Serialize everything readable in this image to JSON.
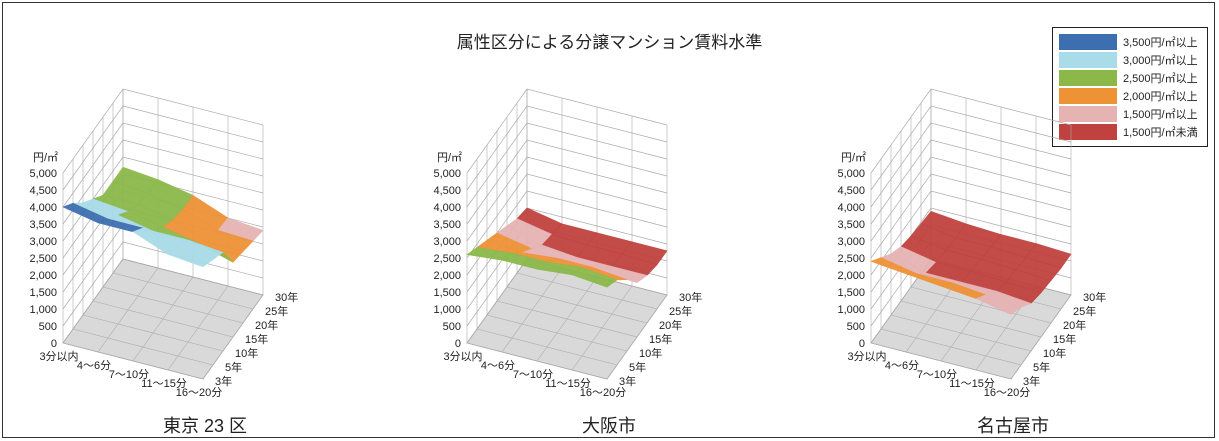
{
  "title": "属性区分による分譲マンション賃料水準",
  "colors": {
    "band_3500": "#3d6fb0",
    "band_3000": "#a9dbe8",
    "band_2500": "#8cb84a",
    "band_2000": "#ee9236",
    "band_1500": "#e6b3b3",
    "band_under": "#c0423f",
    "floor": "#d9d9d9",
    "grid": "#aaaaaa"
  },
  "legend": [
    {
      "label": "3,500円/㎡以上",
      "color": "#3d6fb0"
    },
    {
      "label": "3,000円/㎡以上",
      "color": "#a9dbe8"
    },
    {
      "label": "2,500円/㎡以上",
      "color": "#8cb84a"
    },
    {
      "label": "2,000円/㎡以上",
      "color": "#ee9236"
    },
    {
      "label": "1,500円/㎡以上",
      "color": "#e6b3b3"
    },
    {
      "label": "1,500円/㎡未満",
      "color": "#c0423f"
    }
  ],
  "chart_data": [
    {
      "type": "surface",
      "title": "東京 23 区",
      "zlabel": "円/㎡",
      "zlim": [
        0,
        5000
      ],
      "zticks": [
        "5,000",
        "4,500",
        "4,000",
        "3,500",
        "3,000",
        "2,500",
        "2,000",
        "1,500",
        "1,000",
        "500",
        "0"
      ],
      "x_categories": [
        "3分以内",
        "4〜6分",
        "7〜10分",
        "11〜15分",
        "16〜20分"
      ],
      "y_categories": [
        "3年",
        "5年",
        "10年",
        "15年",
        "20年",
        "25年",
        "30年"
      ],
      "values": [
        [
          4000,
          3700,
          3300,
          3000,
          2700,
          2700,
          2700
        ],
        [
          3800,
          3500,
          3200,
          2900,
          2700,
          2600,
          2600
        ],
        [
          3800,
          3500,
          3000,
          2700,
          2500,
          2400,
          2400
        ],
        [
          3400,
          3200,
          3000,
          2500,
          2100,
          2050,
          2000
        ],
        [
          3300,
          3100,
          2900,
          2200,
          2100,
          2000,
          1900
        ]
      ]
    },
    {
      "type": "surface",
      "title": "大阪市",
      "zlabel": "円/㎡",
      "zlim": [
        0,
        5000
      ],
      "zticks": [
        "5,000",
        "4,500",
        "4,000",
        "3,500",
        "3,000",
        "2,500",
        "2,000",
        "1,500",
        "1,000",
        "500",
        "0"
      ],
      "x_categories": [
        "3分以内",
        "4〜6分",
        "7〜10分",
        "11〜15分",
        "16〜20分"
      ],
      "y_categories": [
        "3年",
        "5年",
        "10年",
        "15年",
        "20年",
        "25年",
        "30年"
      ],
      "values": [
        [
          2600,
          2400,
          2200,
          2000,
          1800,
          1600,
          1500
        ],
        [
          2700,
          2500,
          2100,
          1800,
          1500,
          1400,
          1300
        ],
        [
          2700,
          2500,
          2200,
          1700,
          1400,
          1350,
          1300
        ],
        [
          2800,
          2600,
          2200,
          1800,
          1400,
          1350,
          1300
        ],
        [
          2700,
          2500,
          2100,
          1600,
          1400,
          1300,
          1300
        ]
      ]
    },
    {
      "type": "surface",
      "title": "名古屋市",
      "zlabel": "円/㎡",
      "zlim": [
        0,
        5000
      ],
      "zticks": [
        "5,000",
        "4,500",
        "4,000",
        "3,500",
        "3,000",
        "2,500",
        "2,000",
        "1,500",
        "1,000",
        "500",
        "0"
      ],
      "x_categories": [
        "3分以内",
        "4〜6分",
        "7〜10分",
        "11〜15分",
        "16〜20分"
      ],
      "y_categories": [
        "3年",
        "5年",
        "10年",
        "15年",
        "20年",
        "25年",
        "30年"
      ],
      "values": [
        [
          2400,
          2100,
          1800,
          1600,
          1500,
          1450,
          1400
        ],
        [
          2300,
          1900,
          1500,
          1400,
          1350,
          1300,
          1300
        ],
        [
          2200,
          1900,
          1500,
          1400,
          1350,
          1300,
          1250
        ],
        [
          2100,
          1800,
          1500,
          1350,
          1300,
          1250,
          1250
        ],
        [
          1900,
          1700,
          1400,
          1300,
          1250,
          1200,
          1200
        ]
      ]
    }
  ]
}
